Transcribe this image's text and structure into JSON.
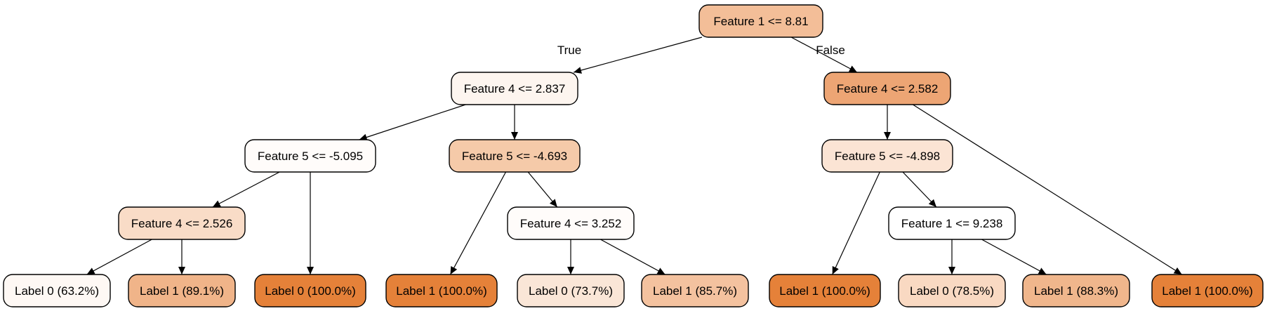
{
  "tree": {
    "branch_labels": {
      "true": "True",
      "false": "False"
    },
    "nodes": [
      {
        "id": "n0",
        "label": "Feature 1 <= 8.81",
        "fill": "#f3be98",
        "kind": "split"
      },
      {
        "id": "n1",
        "label": "Feature 4 <= 2.837",
        "fill": "#fdf5ef",
        "kind": "split"
      },
      {
        "id": "n2",
        "label": "Feature 4 <= 2.582",
        "fill": "#eda574",
        "kind": "split"
      },
      {
        "id": "n3",
        "label": "Feature 5 <= -5.095",
        "fill": "#fffcfa",
        "kind": "split"
      },
      {
        "id": "n4",
        "label": "Feature 5 <= -4.693",
        "fill": "#f5caa9",
        "kind": "split"
      },
      {
        "id": "n5",
        "label": "Feature 5 <= -4.898",
        "fill": "#fbe4d4",
        "kind": "split"
      },
      {
        "id": "n6",
        "label": "Feature 4 <= 2.526",
        "fill": "#f9dcc7",
        "kind": "split"
      },
      {
        "id": "n7",
        "label": "Feature 4 <= 3.252",
        "fill": "#fffcfa",
        "kind": "split"
      },
      {
        "id": "n8",
        "label": "Feature 1 <= 9.238",
        "fill": "#ffffff",
        "kind": "split"
      },
      {
        "id": "n9",
        "label": "Label 0 (63.2%)",
        "fill": "#fef8f4",
        "kind": "leaf"
      },
      {
        "id": "n10",
        "label": "Label 1 (89.1%)",
        "fill": "#f0b489",
        "kind": "leaf"
      },
      {
        "id": "n11",
        "label": "Label 0 (100.0%)",
        "fill": "#e58139",
        "kind": "leaf"
      },
      {
        "id": "n12",
        "label": "Label 1 (100.0%)",
        "fill": "#e58139",
        "kind": "leaf"
      },
      {
        "id": "n13",
        "label": "Label 0 (73.7%)",
        "fill": "#fae6d7",
        "kind": "leaf"
      },
      {
        "id": "n14",
        "label": "Label 1 (85.7%)",
        "fill": "#f4c29f",
        "kind": "leaf"
      },
      {
        "id": "n15",
        "label": "Label 1 (100.0%)",
        "fill": "#e58139",
        "kind": "leaf"
      },
      {
        "id": "n16",
        "label": "Label 0 (78.5%)",
        "fill": "#f9d9c2",
        "kind": "leaf"
      },
      {
        "id": "n17",
        "label": "Label 1 (88.3%)",
        "fill": "#f0b68c",
        "kind": "leaf"
      },
      {
        "id": "n18",
        "label": "Label 1 (100.0%)",
        "fill": "#e58139",
        "kind": "leaf"
      }
    ],
    "edges": [
      {
        "from": "n0",
        "to": "n1",
        "branch": "true"
      },
      {
        "from": "n0",
        "to": "n2",
        "branch": "false"
      },
      {
        "from": "n1",
        "to": "n3"
      },
      {
        "from": "n1",
        "to": "n4"
      },
      {
        "from": "n2",
        "to": "n5"
      },
      {
        "from": "n2",
        "to": "n18"
      },
      {
        "from": "n3",
        "to": "n6"
      },
      {
        "from": "n3",
        "to": "n11"
      },
      {
        "from": "n4",
        "to": "n12"
      },
      {
        "from": "n4",
        "to": "n7"
      },
      {
        "from": "n5",
        "to": "n15"
      },
      {
        "from": "n5",
        "to": "n8"
      },
      {
        "from": "n6",
        "to": "n9"
      },
      {
        "from": "n6",
        "to": "n10"
      },
      {
        "from": "n7",
        "to": "n13"
      },
      {
        "from": "n7",
        "to": "n14"
      },
      {
        "from": "n8",
        "to": "n16"
      },
      {
        "from": "n8",
        "to": "n17"
      }
    ]
  }
}
